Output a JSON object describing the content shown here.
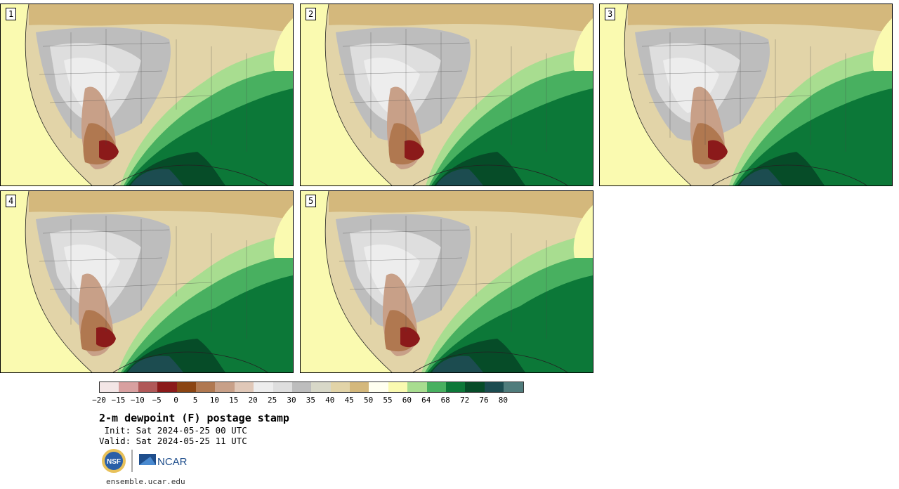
{
  "panels": [
    {
      "id": "1",
      "label": "1"
    },
    {
      "id": "2",
      "label": "2"
    },
    {
      "id": "3",
      "label": "3"
    },
    {
      "id": "4",
      "label": "4"
    },
    {
      "id": "5",
      "label": "5"
    }
  ],
  "colorbar": {
    "colors": [
      "#f3e6e6",
      "#d8a0a0",
      "#b05858",
      "#8b1a1a",
      "#8b4513",
      "#b07850",
      "#c8a088",
      "#e0c8b8",
      "#ededed",
      "#dedede",
      "#bdbdbd",
      "#d8d8c8",
      "#e2d4a8",
      "#d4b87c",
      "#fffff0",
      "#fafab0",
      "#a8dd90",
      "#48b060",
      "#0c7838",
      "#064c28",
      "#1c4c50",
      "#507c7c"
    ],
    "ticks": [
      "−20",
      "−15",
      "−10",
      "−5",
      "0",
      "5",
      "10",
      "15",
      "20",
      "25",
      "30",
      "35",
      "40",
      "45",
      "50",
      "55",
      "60",
      "64",
      "68",
      "72",
      "76",
      "80"
    ]
  },
  "title": "2-m dewpoint (F) postage stamp",
  "init": " Init: Sat 2024-05-25 00 UTC",
  "valid": "Valid: Sat 2024-05-25 11 UTC",
  "logos": {
    "nsf": "NSF",
    "ncar": "NCAR"
  },
  "website": "ensemble.ucar.edu"
}
